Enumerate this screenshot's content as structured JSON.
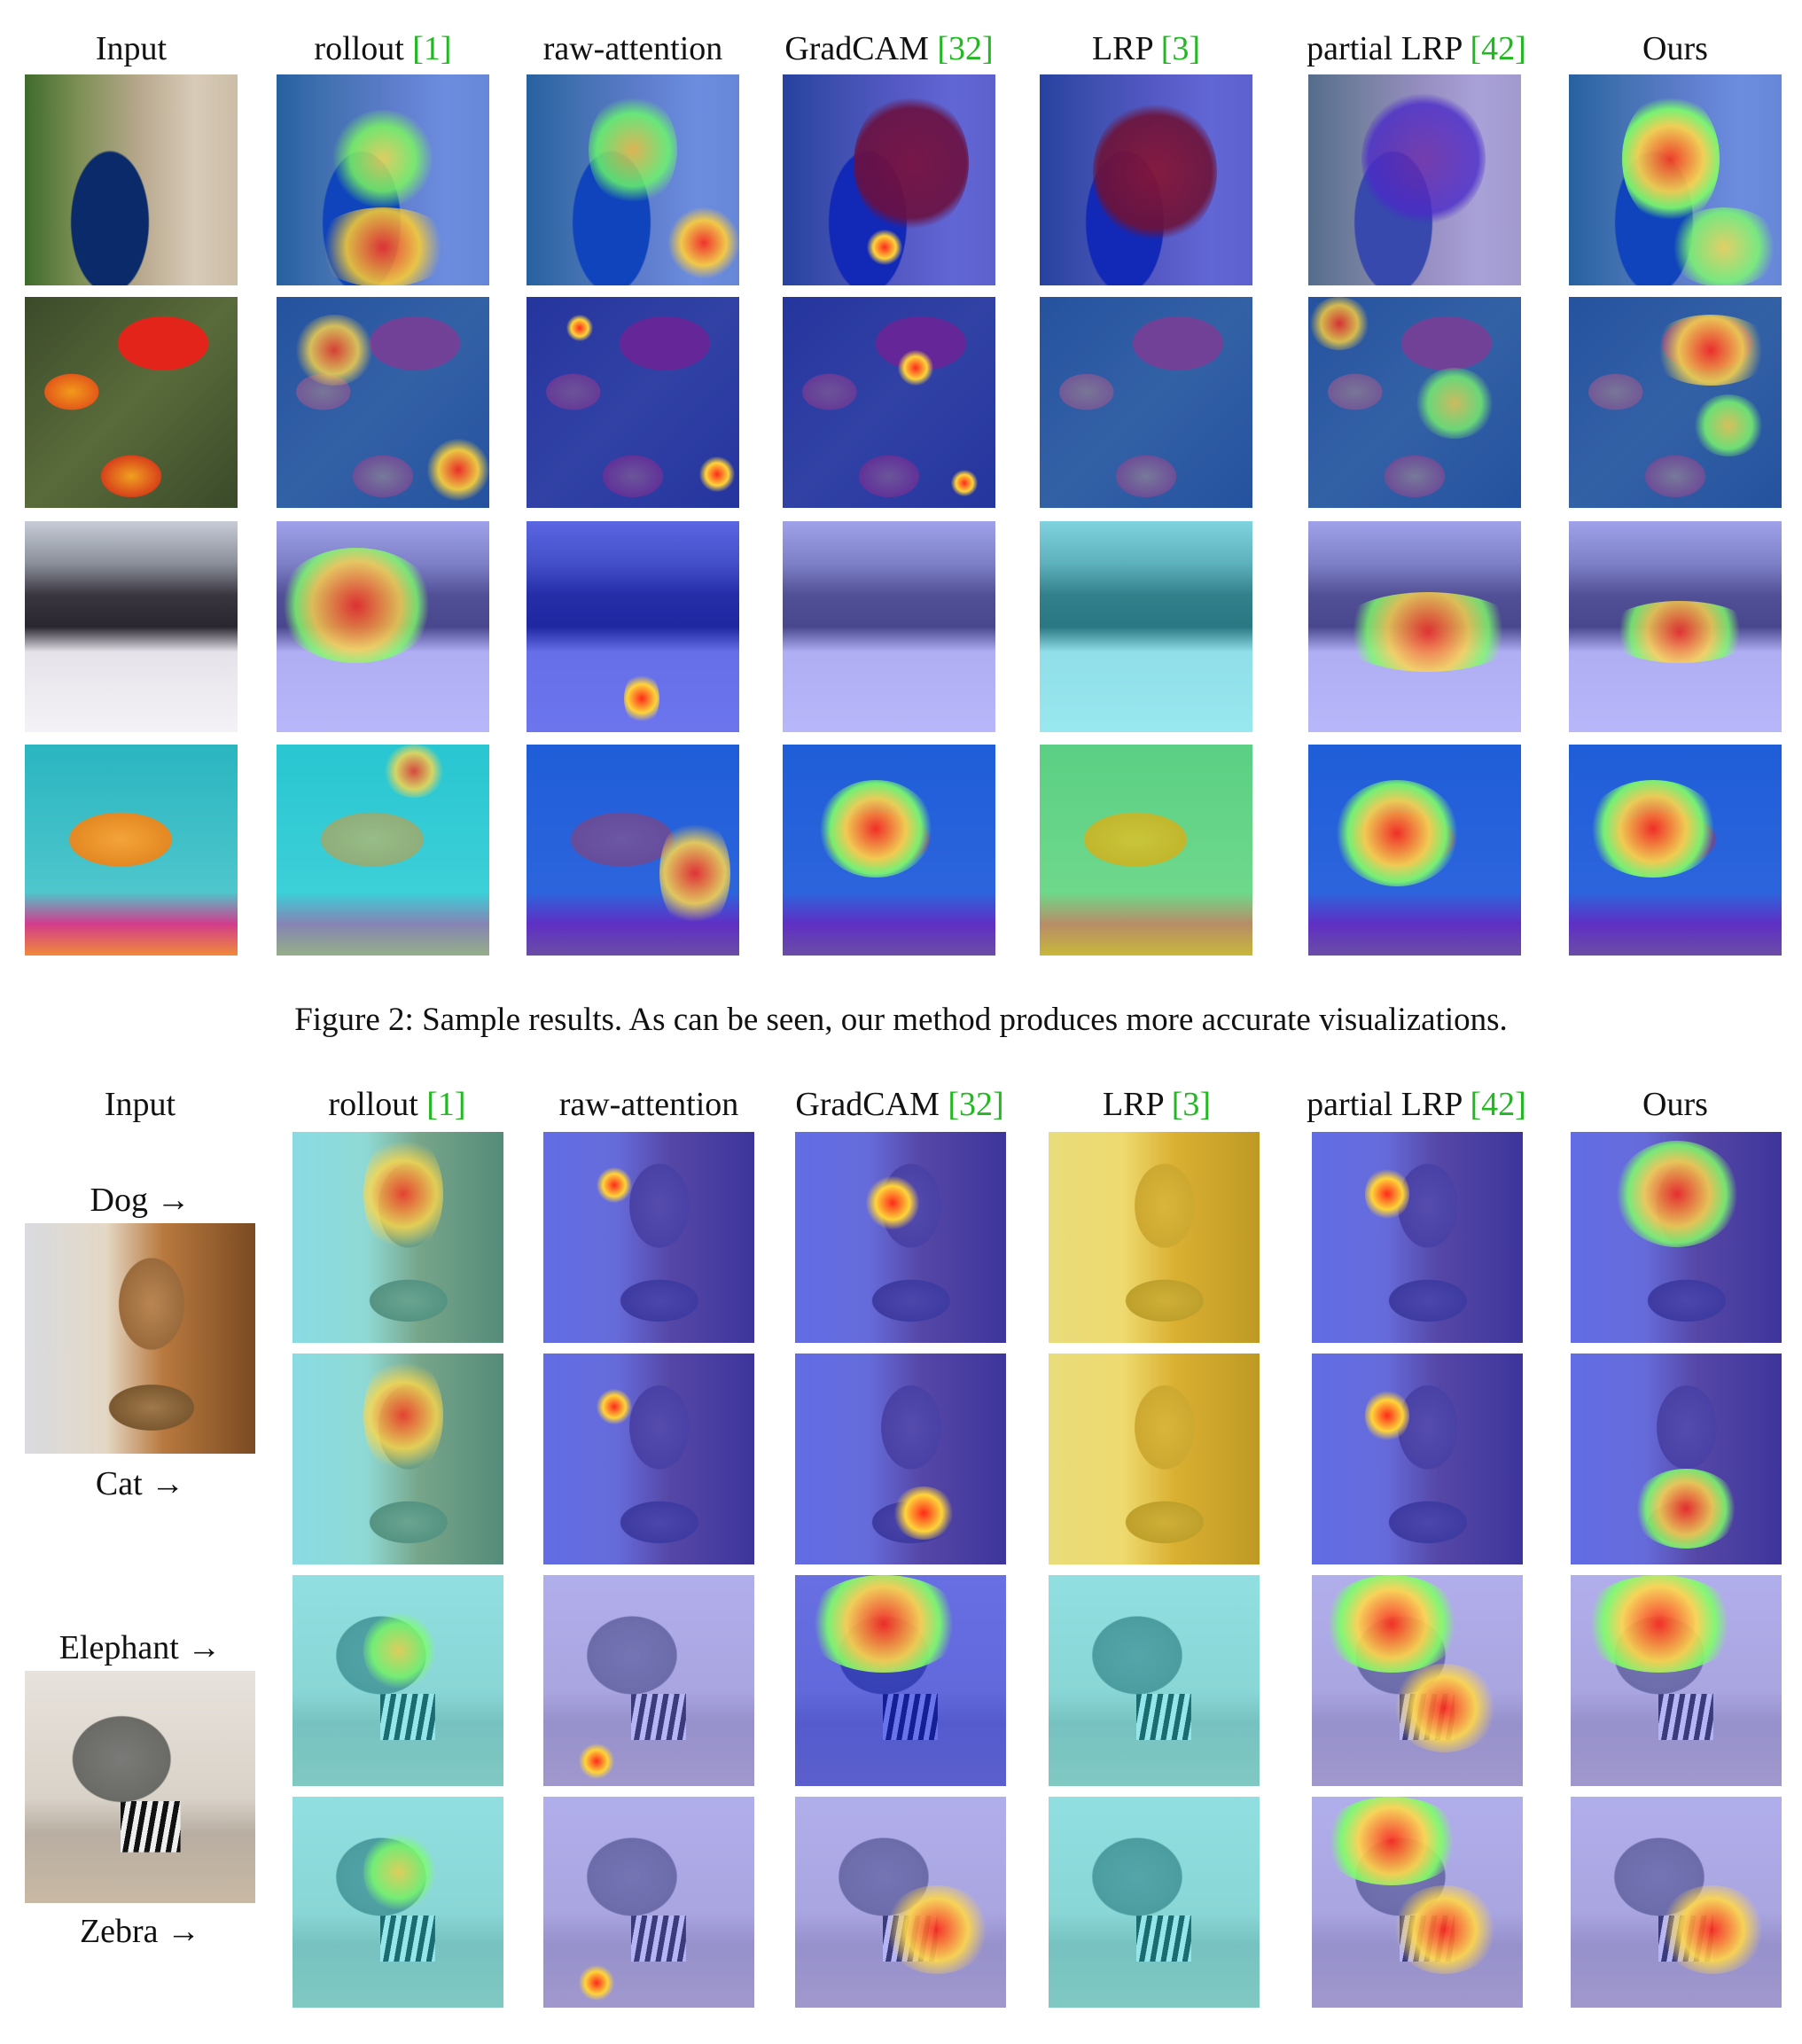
{
  "figure2": {
    "headers": [
      {
        "text": "Input",
        "ref": ""
      },
      {
        "text": "rollout ",
        "ref": "[1]"
      },
      {
        "text": "raw-attention",
        "ref": ""
      },
      {
        "text": "GradCAM ",
        "ref": "[32]"
      },
      {
        "text": "LRP ",
        "ref": "[3]"
      },
      {
        "text": "partial LRP ",
        "ref": "[42]"
      },
      {
        "text": "Ours",
        "ref": ""
      }
    ],
    "caption": "Figure 2: Sample results. As can be seen, our method produces more accurate visualizations."
  },
  "figure3": {
    "headers": [
      {
        "text": "Input",
        "ref": ""
      },
      {
        "text": "rollout ",
        "ref": "[1]"
      },
      {
        "text": "raw-attention",
        "ref": ""
      },
      {
        "text": "GradCAM ",
        "ref": "[32]"
      },
      {
        "text": "LRP ",
        "ref": "[3]"
      },
      {
        "text": "partial LRP ",
        "ref": "[42]"
      },
      {
        "text": "Ours",
        "ref": ""
      }
    ],
    "class_labels": [
      "Dog →",
      "Cat →",
      "Elephant →",
      "Zebra →"
    ]
  },
  "colors": {
    "citation": "#22b822",
    "text": "#111111"
  }
}
